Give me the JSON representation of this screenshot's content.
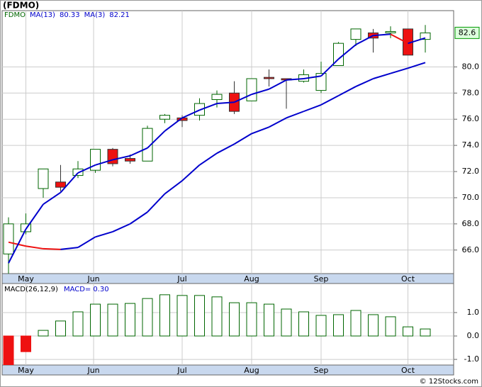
{
  "chart_data": [
    {
      "type": "candlestick",
      "title": "(FDMO)",
      "xticks": [
        {
          "value": 1,
          "label": "May"
        },
        {
          "value": 4.9,
          "label": "Jun"
        },
        {
          "value": 10,
          "label": "Jul"
        },
        {
          "value": 14,
          "label": "Aug"
        },
        {
          "value": 18,
          "label": "Sep"
        },
        {
          "value": 23,
          "label": "Oct"
        }
      ],
      "ylim": [
        64.2,
        84.3
      ],
      "yticks": [
        {
          "value": 66,
          "label": "66.0"
        },
        {
          "value": 68,
          "label": "68.0"
        },
        {
          "value": 70,
          "label": "70.0"
        },
        {
          "value": 72,
          "label": "72.0"
        },
        {
          "value": 74,
          "label": "74.0"
        },
        {
          "value": 76,
          "label": "76.0"
        },
        {
          "value": 78,
          "label": "78.0"
        },
        {
          "value": 80,
          "label": "80.0"
        }
      ],
      "grid": true,
      "up_color": "#ffffff",
      "down_color": "#ee1111",
      "rise_color": "#0000cc",
      "fall_color": "#ee1111",
      "price_label": {
        "value": 82.6,
        "label": "82.6"
      },
      "candles": {
        "name": "FDMO",
        "color": "#006600",
        "open": [
          65.7,
          67.4,
          70.7,
          71.2,
          71.7,
          72.1,
          73.7,
          73.0,
          72.8,
          76.0,
          76.1,
          76.3,
          77.5,
          78.0,
          77.4,
          79.2,
          79.1,
          78.9,
          78.2,
          80.1,
          82.1,
          82.6,
          82.6,
          82.9,
          82.1
        ],
        "high": [
          68.5,
          68.8,
          72.2,
          72.5,
          72.8,
          73.7,
          73.8,
          73.3,
          75.5,
          76.4,
          76.3,
          77.6,
          78.2,
          78.9,
          79.1,
          79.8,
          79.1,
          79.8,
          80.4,
          81.9,
          82.9,
          82.9,
          83.1,
          82.9,
          83.2
        ],
        "low": [
          64.2,
          67.2,
          70.0,
          70.5,
          71.5,
          71.9,
          72.4,
          72.6,
          72.8,
          75.7,
          75.4,
          75.9,
          76.9,
          76.4,
          77.4,
          78.5,
          76.8,
          78.8,
          78.0,
          80.1,
          81.6,
          81.1,
          82.2,
          80.9,
          81.1
        ],
        "close": [
          68.0,
          68.0,
          72.2,
          70.8,
          72.2,
          73.7,
          72.6,
          72.8,
          75.3,
          76.3,
          75.9,
          77.2,
          77.9,
          76.6,
          79.1,
          79.1,
          79.0,
          79.4,
          79.5,
          81.8,
          82.9,
          82.2,
          82.7,
          80.9,
          82.6
        ]
      },
      "series": [
        {
          "name": "MA(13)",
          "legend_value": "80.33",
          "values": [
            66.6,
            66.3,
            66.1,
            66.05,
            66.2,
            67.0,
            67.4,
            68.0,
            68.9,
            70.3,
            71.3,
            72.5,
            73.4,
            74.1,
            74.9,
            75.4,
            76.1,
            76.6,
            77.1,
            77.8,
            78.5,
            79.1,
            79.5,
            79.9,
            80.33
          ]
        },
        {
          "name": "MA(3)",
          "legend_value": "82.21",
          "values": [
            65.0,
            67.6,
            69.5,
            70.4,
            71.9,
            72.5,
            72.9,
            73.2,
            73.8,
            75.1,
            76.1,
            76.7,
            77.2,
            77.3,
            77.9,
            78.3,
            79.0,
            79.1,
            79.3,
            80.6,
            81.7,
            82.4,
            82.5,
            81.8,
            82.21
          ]
        }
      ]
    },
    {
      "type": "bar",
      "title": "MACD(26,12,9)",
      "legend_name": "MACD=",
      "legend_value": "0.30",
      "xticks": [
        {
          "value": 1,
          "label": "May"
        },
        {
          "value": 4.9,
          "label": "Jun"
        },
        {
          "value": 10,
          "label": "Jul"
        },
        {
          "value": 14,
          "label": "Aug"
        },
        {
          "value": 18,
          "label": "Sep"
        },
        {
          "value": 23,
          "label": "Oct"
        }
      ],
      "ylim": [
        -1.24,
        2.24
      ],
      "yticks": [
        {
          "value": 1,
          "label": "1.0"
        },
        {
          "value": 0,
          "label": "0.0"
        },
        {
          "value": -1,
          "label": "-1.0"
        }
      ],
      "color": "#006600",
      "negative_color": "#ee1111",
      "values": [
        -1.4,
        -0.67,
        0.24,
        0.64,
        1.03,
        1.36,
        1.36,
        1.39,
        1.6,
        1.76,
        1.73,
        1.73,
        1.67,
        1.42,
        1.42,
        1.36,
        1.15,
        1.03,
        0.88,
        0.91,
        1.09,
        0.91,
        0.82,
        0.39,
        0.3
      ]
    }
  ],
  "footer": "© 12Stocks.com"
}
